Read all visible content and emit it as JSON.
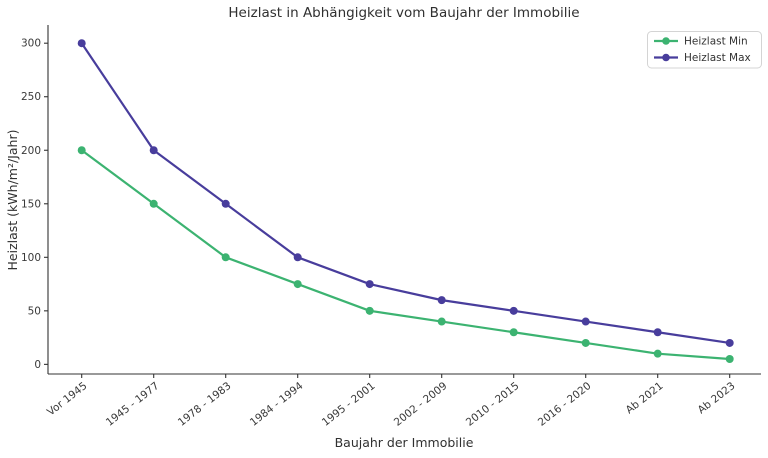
{
  "figure": {
    "background": "#ffffff",
    "text_color": "#3a3a3a",
    "axis_color": "#333333"
  },
  "chart_data": {
    "type": "line",
    "title": "Heizlast in Abhängigkeit vom Baujahr der Immobilie",
    "xlabel": "Baujahr der Immobilie",
    "ylabel": "Heizlast (kWh/m²/Jahr)",
    "categories": [
      "Vor 1945",
      "1945 - 1977",
      "1978 - 1983",
      "1984 - 1994",
      "1995 - 2001",
      "2002 - 2009",
      "2010 - 2015",
      "2016 - 2020",
      "Ab 2021",
      "Ab 2023"
    ],
    "series": [
      {
        "name": "Heizlast Min",
        "color": "#3cb371",
        "values": [
          200,
          150,
          100,
          75,
          50,
          40,
          30,
          20,
          10,
          5
        ]
      },
      {
        "name": "Heizlast Max",
        "color": "#483d9c",
        "values": [
          300,
          200,
          150,
          100,
          75,
          60,
          50,
          40,
          30,
          20
        ]
      }
    ],
    "yticks": [
      0,
      50,
      100,
      150,
      200,
      250,
      300
    ],
    "ylim": [
      -9,
      317
    ],
    "grid": false,
    "x_tick_rotation": -38,
    "legend": {
      "position": "top-right",
      "border_color": "#d4d4d4",
      "background": "rgba(255,255,255,0.85)",
      "entries": [
        "Heizlast Min",
        "Heizlast Max"
      ]
    }
  }
}
